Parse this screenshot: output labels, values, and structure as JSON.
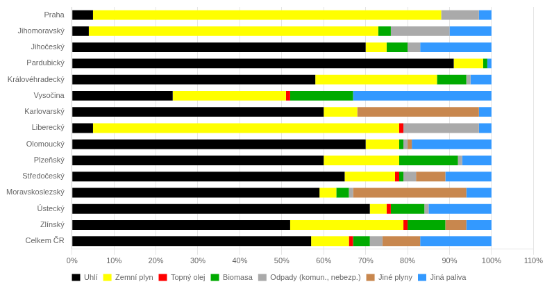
{
  "chart_data": {
    "type": "bar",
    "orientation": "horizontal",
    "stacked": true,
    "categories": [
      "Praha",
      "Jihomoravský",
      "Jihočeský",
      "Pardubický",
      "Královéhradecký",
      "Vysočina",
      "Karlovarský",
      "Liberecký",
      "Olomoucký",
      "Plzeňský",
      "Středočeský",
      "Moravskoslezský",
      "Ústecký",
      "Zlínský",
      "Celkem ČR"
    ],
    "series": [
      {
        "name": "Uhlí",
        "color": "#000000",
        "values": [
          5,
          4,
          70,
          91,
          58,
          24,
          60,
          5,
          70,
          60,
          65,
          59,
          71,
          52,
          57
        ]
      },
      {
        "name": "Zemní plyn",
        "color": "#ffff00",
        "values": [
          83,
          69,
          5,
          7,
          29,
          27,
          8,
          73,
          8,
          18,
          12,
          4,
          4,
          27,
          9
        ]
      },
      {
        "name": "Topný olej",
        "color": "#ff0000",
        "values": [
          0,
          0,
          0,
          0,
          0,
          1,
          0,
          1,
          0,
          0,
          1,
          0,
          1,
          1,
          1
        ]
      },
      {
        "name": "Biomasa",
        "color": "#00aa00",
        "values": [
          0,
          3,
          5,
          1,
          7,
          15,
          0,
          0,
          1,
          14,
          1,
          3,
          8,
          9,
          4
        ]
      },
      {
        "name": "Odpady (komun., nebezp.)",
        "color": "#aaaaaa",
        "values": [
          9,
          14,
          3,
          0,
          1,
          0,
          0,
          18,
          1,
          1,
          3,
          1,
          1,
          0,
          3
        ]
      },
      {
        "name": "Jiné plyny",
        "color": "#c8874e",
        "values": [
          0,
          0,
          0,
          0,
          0,
          0,
          29,
          0,
          1,
          0,
          7,
          27,
          0,
          5,
          9
        ]
      },
      {
        "name": "Jiná paliva",
        "color": "#3399ff",
        "values": [
          3,
          10,
          17,
          1,
          5,
          33,
          3,
          3,
          19,
          7,
          11,
          6,
          15,
          6,
          17
        ]
      }
    ],
    "xlim": [
      0,
      110
    ],
    "xticks": [
      {
        "value": 0,
        "label": "0%"
      },
      {
        "value": 10,
        "label": "10%"
      },
      {
        "value": 20,
        "label": "20%"
      },
      {
        "value": 30,
        "label": "30%"
      },
      {
        "value": 40,
        "label": "40%"
      },
      {
        "value": 50,
        "label": "50%"
      },
      {
        "value": 60,
        "label": "60%"
      },
      {
        "value": 70,
        "label": "70%"
      },
      {
        "value": 80,
        "label": "80%"
      },
      {
        "value": 90,
        "label": "90%"
      },
      {
        "value": 100,
        "label": "100%"
      },
      {
        "value": 110,
        "label": "110%"
      }
    ],
    "grid": true,
    "legend": "bottom"
  }
}
